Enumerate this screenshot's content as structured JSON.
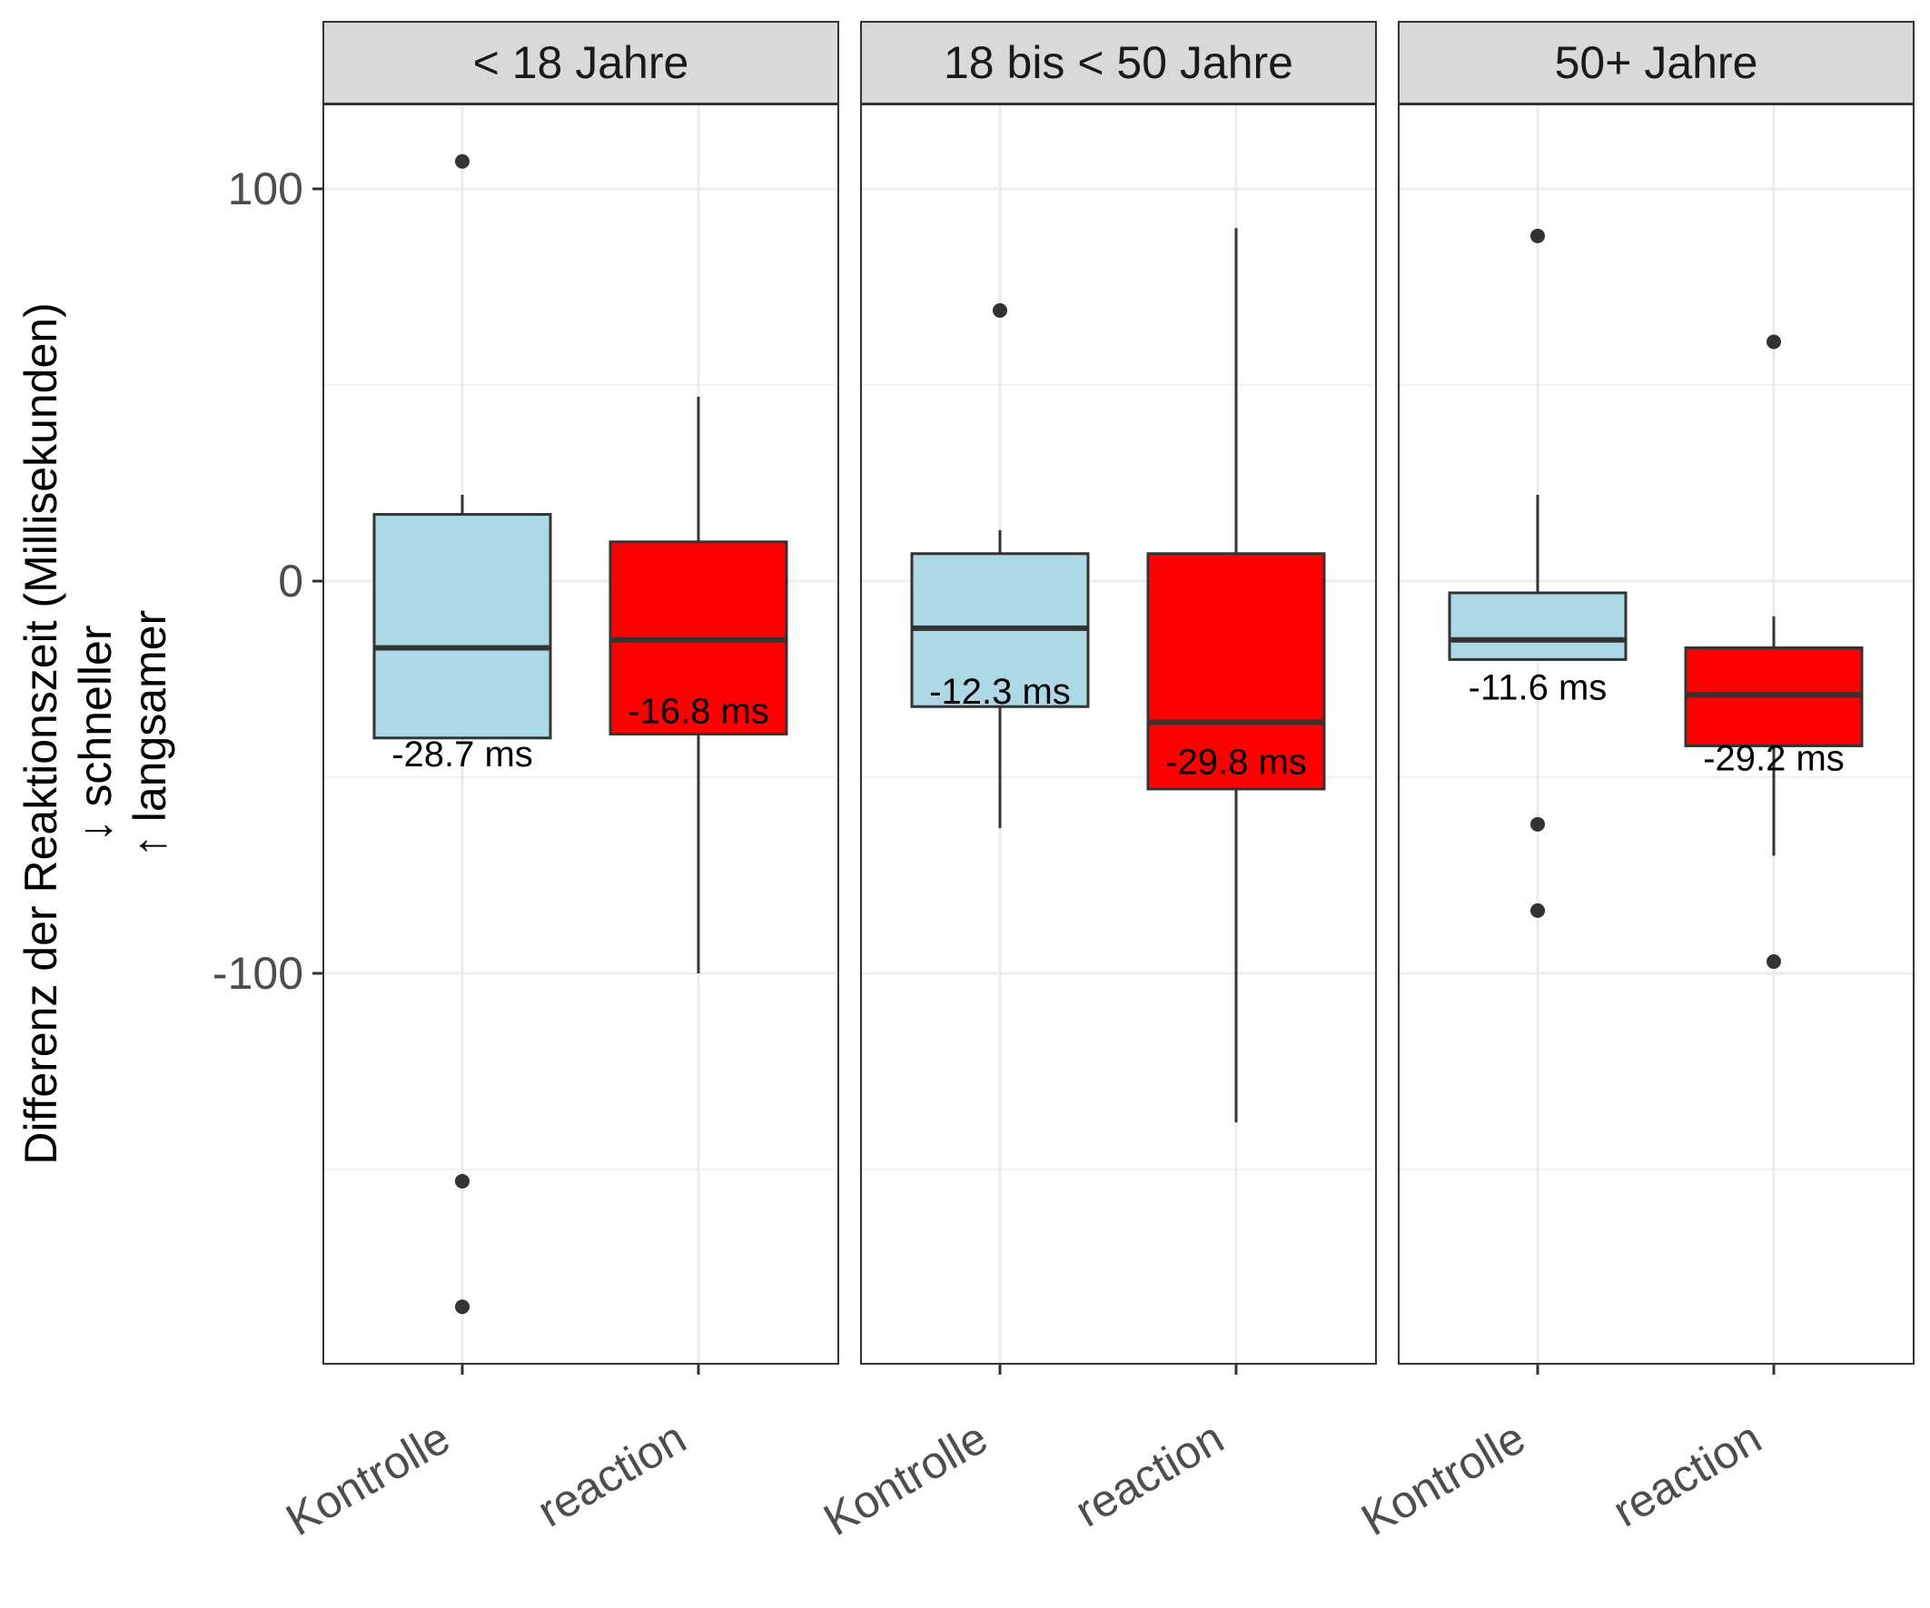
{
  "chart_data": {
    "type": "boxplot",
    "title": "",
    "xlabel": "",
    "ylabel_lines": [
      "Differenz der Reaktionszeit (Millisekunden)",
      "↓  schneller",
      "↑ langsamer"
    ],
    "ylim": [
      -200,
      120
    ],
    "yticks": [
      100,
      0,
      -100
    ],
    "grid": true,
    "categories": [
      "Kontrolle",
      "reaction"
    ],
    "fills": {
      "Kontrolle": "#add8e6",
      "reaction": "#ff0000"
    },
    "box_edge_color": "#333333",
    "panels": [
      {
        "strip": "< 18 Jahre",
        "boxes": [
          {
            "category": "Kontrolle",
            "whisker_low": -40,
            "q1": -40,
            "median": -17,
            "q3": 17,
            "whisker_high": 22,
            "outliers": [
              107,
              -153,
              -185
            ],
            "label": "-28.7 ms",
            "label_y": -44
          },
          {
            "category": "reaction",
            "whisker_low": -100,
            "q1": -39,
            "median": -15,
            "q3": 10,
            "whisker_high": 47,
            "outliers": [],
            "label": "-16.8 ms",
            "label_y": -33
          }
        ]
      },
      {
        "strip": "18 bis < 50 Jahre",
        "boxes": [
          {
            "category": "Kontrolle",
            "whisker_low": -63,
            "q1": -32,
            "median": -12,
            "q3": 7,
            "whisker_high": 13,
            "outliers": [
              69
            ],
            "label": "-12.3 ms",
            "label_y": -28
          },
          {
            "category": "reaction",
            "whisker_low": -138,
            "q1": -53,
            "median": -36,
            "q3": 7,
            "whisker_high": 90,
            "outliers": [],
            "label": "-29.8 ms",
            "label_y": -46
          }
        ]
      },
      {
        "strip": "50+ Jahre",
        "boxes": [
          {
            "category": "Kontrolle",
            "whisker_low": -20,
            "q1": -20,
            "median": -15,
            "q3": -3,
            "whisker_high": 22,
            "outliers": [
              88,
              -62,
              -84
            ],
            "label": "-11.6 ms",
            "label_y": -27
          },
          {
            "category": "reaction",
            "whisker_low": -70,
            "q1": -42,
            "median": -29,
            "q3": -17,
            "whisker_high": -9,
            "outliers": [
              61,
              -97
            ],
            "label": "-29.2 ms",
            "label_y": -45
          }
        ]
      }
    ]
  }
}
